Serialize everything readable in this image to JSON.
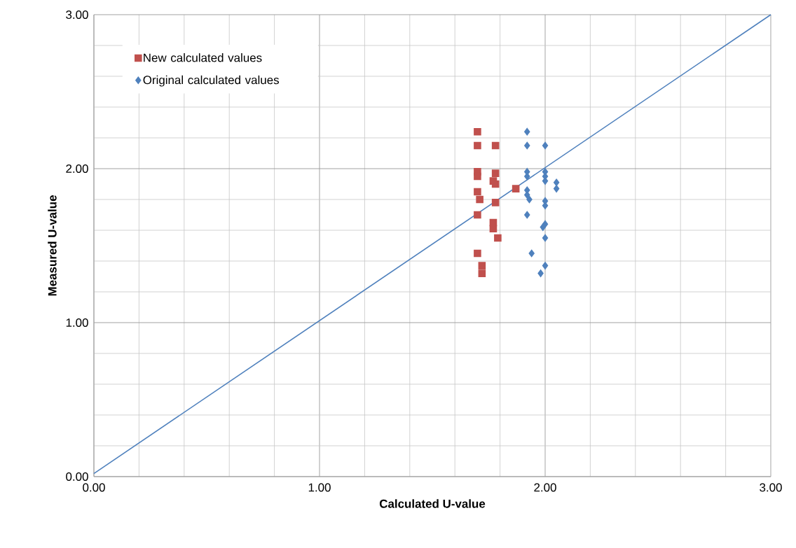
{
  "chart_data": {
    "type": "scatter",
    "xlabel": "Calculated U-value",
    "ylabel": "Measured U-value",
    "xlim": [
      0,
      3
    ],
    "ylim": [
      0,
      3
    ],
    "xticks": [
      {
        "value": 0,
        "label": "0.00"
      },
      {
        "value": 1,
        "label": "1.00"
      },
      {
        "value": 2,
        "label": "2.00"
      },
      {
        "value": 3,
        "label": "3.00"
      }
    ],
    "yticks": [
      {
        "value": 0,
        "label": "0.00"
      },
      {
        "value": 1,
        "label": "1.00"
      },
      {
        "value": 2,
        "label": "2.00"
      },
      {
        "value": 3,
        "label": "3.00"
      }
    ],
    "grid": true,
    "legend": "top left",
    "series": [
      {
        "name": "New calculated values",
        "color": "#c0504d",
        "marker": "square",
        "x": [
          1.7,
          1.7,
          1.78,
          1.7,
          1.7,
          1.78,
          1.77,
          1.78,
          1.87,
          1.7,
          1.71,
          1.78,
          1.7,
          1.77,
          1.77,
          1.79,
          1.7,
          1.72,
          1.72
        ],
        "values": [
          2.24,
          2.15,
          2.15,
          1.98,
          1.95,
          1.97,
          1.92,
          1.9,
          1.87,
          1.85,
          1.8,
          1.78,
          1.7,
          1.65,
          1.61,
          1.55,
          1.45,
          1.37,
          1.32
        ]
      },
      {
        "name": "Original calculated values",
        "color": "#4f81bd",
        "marker": "diamond",
        "x": [
          1.92,
          1.92,
          2.0,
          1.92,
          1.92,
          2.0,
          2.0,
          2.0,
          2.05,
          2.05,
          1.92,
          1.92,
          1.93,
          2.0,
          2.0,
          1.92,
          2.0,
          1.99,
          2.0,
          1.94,
          2.0,
          1.98
        ],
        "values": [
          2.24,
          2.15,
          2.15,
          1.98,
          1.95,
          1.98,
          1.95,
          1.92,
          1.91,
          1.87,
          1.86,
          1.83,
          1.8,
          1.79,
          1.76,
          1.7,
          1.64,
          1.62,
          1.55,
          1.45,
          1.37,
          1.32
        ]
      },
      {
        "type": "line",
        "color": "#4f81bd",
        "marker": "none",
        "x": [
          0,
          3
        ],
        "values": [
          0.02,
          3.0
        ]
      }
    ]
  }
}
